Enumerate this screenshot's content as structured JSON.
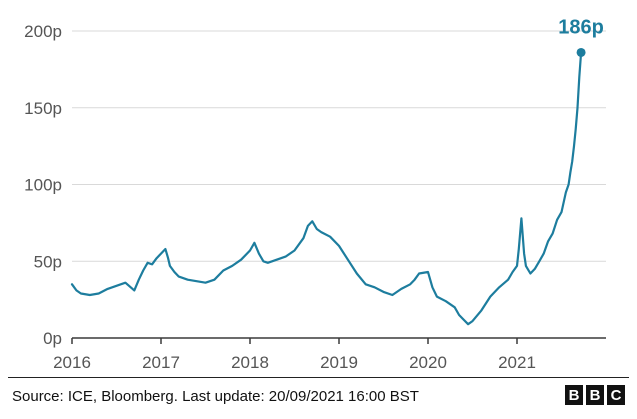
{
  "chart_data": {
    "type": "line",
    "title": "",
    "xlabel": "",
    "ylabel": "",
    "ylim": [
      0,
      200
    ],
    "xlim": [
      2016.0,
      2022.0
    ],
    "y_ticks": [
      {
        "value": 0,
        "label": "0p"
      },
      {
        "value": 50,
        "label": "50p"
      },
      {
        "value": 100,
        "label": "100p"
      },
      {
        "value": 150,
        "label": "150p"
      },
      {
        "value": 200,
        "label": "200p"
      }
    ],
    "x_ticks": [
      {
        "value": 2016,
        "label": "2016"
      },
      {
        "value": 2017,
        "label": "2017"
      },
      {
        "value": 2018,
        "label": "2018"
      },
      {
        "value": 2019,
        "label": "2019"
      },
      {
        "value": 2020,
        "label": "2020"
      },
      {
        "value": 2021,
        "label": "2021"
      }
    ],
    "grid": true,
    "series": [
      {
        "color": "#1d7d9e",
        "x": [
          2016.0,
          2016.05,
          2016.1,
          2016.2,
          2016.3,
          2016.4,
          2016.5,
          2016.6,
          2016.7,
          2016.75,
          2016.8,
          2016.85,
          2016.9,
          2016.95,
          2017.0,
          2017.05,
          2017.08,
          2017.1,
          2017.15,
          2017.2,
          2017.3,
          2017.4,
          2017.5,
          2017.6,
          2017.7,
          2017.8,
          2017.9,
          2018.0,
          2018.05,
          2018.1,
          2018.15,
          2018.2,
          2018.3,
          2018.4,
          2018.5,
          2018.6,
          2018.65,
          2018.7,
          2018.75,
          2018.8,
          2018.9,
          2019.0,
          2019.1,
          2019.2,
          2019.3,
          2019.4,
          2019.5,
          2019.6,
          2019.7,
          2019.8,
          2019.85,
          2019.9,
          2020.0,
          2020.05,
          2020.1,
          2020.2,
          2020.3,
          2020.35,
          2020.4,
          2020.45,
          2020.5,
          2020.6,
          2020.7,
          2020.8,
          2020.9,
          2020.95,
          2021.0,
          2021.02,
          2021.05,
          2021.08,
          2021.1,
          2021.15,
          2021.2,
          2021.25,
          2021.3,
          2021.35,
          2021.4,
          2021.45,
          2021.5,
          2021.55,
          2021.58,
          2021.6,
          2021.62,
          2021.64,
          2021.66,
          2021.68,
          2021.7,
          2021.72
        ],
        "values": [
          35,
          31,
          29,
          28,
          29,
          32,
          34,
          36,
          31,
          38,
          44,
          49,
          48,
          52,
          55,
          58,
          52,
          47,
          43,
          40,
          38,
          37,
          36,
          38,
          44,
          47,
          51,
          57,
          62,
          55,
          50,
          49,
          51,
          53,
          57,
          65,
          73,
          76,
          71,
          69,
          66,
          60,
          51,
          42,
          35,
          33,
          30,
          28,
          32,
          35,
          38,
          42,
          43,
          33,
          27,
          24,
          20,
          15,
          12,
          9,
          11,
          18,
          27,
          33,
          38,
          43,
          47,
          58,
          78,
          55,
          47,
          42,
          45,
          50,
          55,
          63,
          68,
          77,
          82,
          95,
          100,
          108,
          115,
          125,
          136,
          150,
          170,
          186
        ]
      }
    ],
    "annotations": [
      {
        "text": "186p",
        "x": 2021.72,
        "y": 186
      }
    ]
  },
  "footer": {
    "source": "Source: ICE, Bloomberg. Last update: 20/09/2021 16:00 BST",
    "logo_letters": [
      "B",
      "B",
      "C"
    ]
  }
}
